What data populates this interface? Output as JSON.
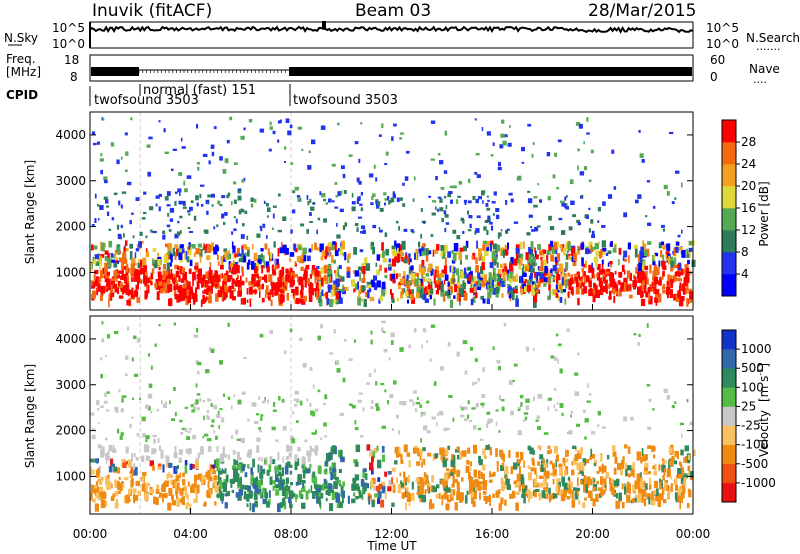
{
  "header": {
    "station": "Inuvik (fitACF)",
    "beam": "Beam 03",
    "date": "28/Mar/2015"
  },
  "chart_data": [
    {
      "type": "line",
      "name": "noise-panel",
      "left_axis": {
        "label": "N.Sky",
        "ticks": [
          "10^5",
          "10^0"
        ]
      },
      "right_axis": {
        "label": "N.Search",
        "ticks": [
          "10^5",
          "10^0"
        ],
        "legend": "......."
      }
    },
    {
      "type": "line",
      "name": "frequency-panel",
      "left_axis": {
        "label_top": "Freq.",
        "label_bottom": "[MHz]",
        "ticks": [
          "18",
          "8"
        ]
      },
      "right_axis": {
        "label": "Nave",
        "ticks": [
          "60",
          "0"
        ],
        "legend": "...."
      }
    },
    {
      "type": "table",
      "name": "cpid-panel",
      "label": "CPID",
      "segments": [
        {
          "label": "twofsound 3503",
          "start_hour": 0,
          "end_hour": 2
        },
        {
          "label": "normal (fast) 151",
          "start_hour": 2,
          "end_hour": 8
        },
        {
          "label": "twofsound 3503",
          "start_hour": 8,
          "end_hour": 24
        }
      ]
    },
    {
      "type": "heatmap",
      "name": "power",
      "ylabel": "Slant Range [km]",
      "yticks": [
        1000,
        2000,
        3000,
        4000
      ],
      "ylim": [
        180,
        4500
      ],
      "colorbar": {
        "label": "Power [dB]",
        "ticks": [
          "28",
          "24",
          "20",
          "16",
          "12",
          "8",
          "4"
        ],
        "colors": [
          "#0000ff",
          "#2233ee",
          "#2d7d5a",
          "#57a855",
          "#e0d838",
          "#f2a020",
          "#f46a10",
          "#ff0000"
        ]
      }
    },
    {
      "type": "heatmap",
      "name": "velocity",
      "ylabel": "Slant Range [km]",
      "yticks": [
        1000,
        2000,
        3000,
        4000
      ],
      "ylim": [
        180,
        4500
      ],
      "xlabel": "Time UT",
      "xticks": [
        "00:00",
        "04:00",
        "08:00",
        "12:00",
        "16:00",
        "20:00",
        "00:00"
      ],
      "colorbar": {
        "label_main": "Velocity",
        "label_units": "[m s",
        "label_exp": "-1",
        "label_close": "]",
        "ticks": [
          "1000",
          "500",
          "100",
          "25",
          "-25",
          "-100",
          "-500",
          "-1000"
        ],
        "colors": [
          "#1133cc",
          "#3366aa",
          "#2d8a5a",
          "#55bb44",
          "#c8c8c8",
          "#f8c060",
          "#f08a10",
          "#f05010",
          "#e81010"
        ]
      }
    }
  ]
}
